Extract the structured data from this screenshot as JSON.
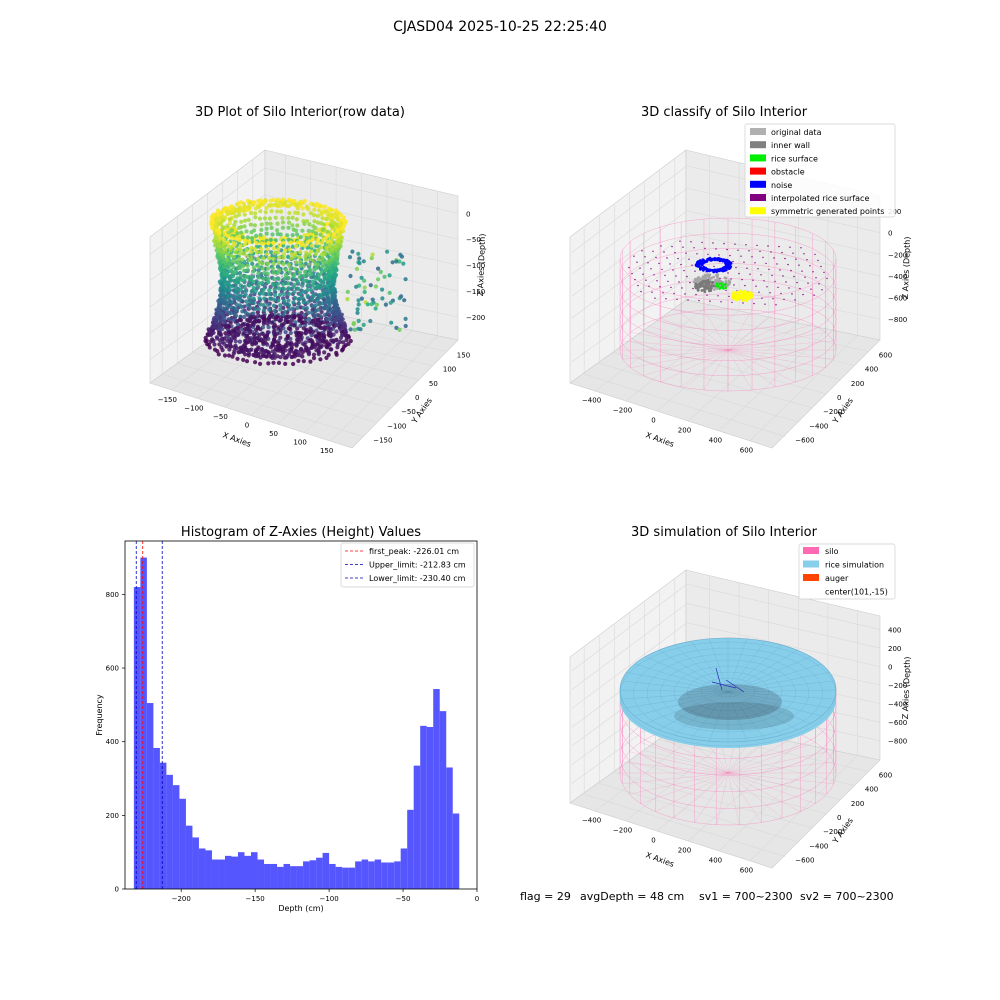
{
  "figure_title": "CJASD04 2025-10-25 22:25:40",
  "footer": {
    "flag": "flag = 29",
    "avg_depth": "avgDepth = 48 cm",
    "sv1": "sv1 = 700~2300",
    "sv2": "sv2 = 700~2300"
  },
  "colors": {
    "pane": "#f2f2f2",
    "pane_edge": "#cccccc",
    "silo": "#ff69b4",
    "rice_sim": "#87ceeb",
    "auger": "#ff4500",
    "hist_bar": "#4d4dff"
  },
  "chart_data": [
    {
      "type": "scatter",
      "subtype": "3d",
      "title": "3D Plot of Silo Interior(row data)",
      "xlabel": "X Axies",
      "ylabel": "Y Axies",
      "zlabel": "Z Axies (Depth)",
      "x_ticks": [
        "−150",
        "−100",
        "−50",
        "0",
        "50",
        "100",
        "150"
      ],
      "y_ticks": [
        "−150",
        "−100",
        "−50",
        "0",
        "50",
        "100",
        "150"
      ],
      "z_ticks": [
        "0",
        "−50",
        "−100",
        "−150",
        "−200"
      ],
      "xlim": [
        -160,
        160
      ],
      "ylim": [
        -160,
        160
      ],
      "zlim": [
        -240,
        0
      ],
      "colormap": "viridis"
    },
    {
      "type": "scatter",
      "subtype": "3d",
      "title": "3D classify of Silo Interior",
      "xlabel": "X Axies",
      "ylabel": "Y Axies",
      "zlabel": "Z Axies (Depth)",
      "x_ticks": [
        "−400",
        "−200",
        "0",
        "200",
        "400",
        "600"
      ],
      "y_ticks": [
        "−600",
        "−400",
        "−200",
        "0",
        "200",
        "400",
        "600"
      ],
      "z_ticks": [
        "200",
        "0",
        "−200",
        "−400",
        "−600",
        "−800"
      ],
      "legend_position": "upper-right",
      "legend": [
        {
          "label": "original data",
          "color": "#b0b0b0"
        },
        {
          "label": "inner wall",
          "color": "#808080"
        },
        {
          "label": "rice surface",
          "color": "#00ee00"
        },
        {
          "label": "obstacle",
          "color": "#ff0000"
        },
        {
          "label": "noise",
          "color": "#0000ff"
        },
        {
          "label": "interpolated rice surface",
          "color": "#800080"
        },
        {
          "label": "symmetric generated points",
          "color": "#ffff00"
        }
      ]
    },
    {
      "type": "bar",
      "subtype": "histogram",
      "title": "Histogram of Z-Axies (Height) Values",
      "xlabel": "Depth (cm)",
      "ylabel": "Frequency",
      "xlim": [
        -238,
        0
      ],
      "ylim": [
        0,
        945
      ],
      "x_ticks": [
        -200,
        -150,
        -100,
        -50,
        0
      ],
      "y_ticks": [
        0,
        200,
        400,
        600,
        800
      ],
      "bin_start": -232,
      "bin_width": 4.4,
      "values": [
        820,
        900,
        505,
        383,
        343,
        310,
        282,
        245,
        172,
        140,
        110,
        105,
        80,
        80,
        90,
        88,
        100,
        90,
        100,
        80,
        68,
        68,
        60,
        68,
        62,
        62,
        75,
        78,
        85,
        98,
        68,
        60,
        58,
        58,
        75,
        80,
        75,
        80,
        72,
        72,
        75,
        110,
        215,
        335,
        443,
        440,
        543,
        483,
        330,
        205
      ],
      "legend_position": "upper-right",
      "lines": [
        {
          "label": "first_peak: -226.01 cm",
          "value": -226.01,
          "color": "#ff0000"
        },
        {
          "label": "Upper_limit: -212.83 cm",
          "value": -212.83,
          "color": "#0000bb"
        },
        {
          "label": "Lower_limit: -230.40 cm",
          "value": -230.4,
          "color": "#0000bb"
        }
      ]
    },
    {
      "type": "area",
      "subtype": "3d-surface",
      "title": "3D simulation of Silo Interior",
      "xlabel": "X Axies",
      "ylabel": "Y Axies",
      "zlabel": "Z Axies (Depth)",
      "x_ticks": [
        "−400",
        "−200",
        "0",
        "200",
        "400",
        "600"
      ],
      "y_ticks": [
        "−600",
        "−400",
        "−200",
        "0",
        "200",
        "400",
        "600"
      ],
      "z_ticks": [
        "400",
        "200",
        "0",
        "−200",
        "−400",
        "−600",
        "−800"
      ],
      "legend_position": "upper-right",
      "legend": [
        {
          "label": "silo",
          "color": "#ff69b4",
          "marker": "patch"
        },
        {
          "label": "rice simulation",
          "color": "#87ceeb",
          "marker": "patch"
        },
        {
          "label": "auger",
          "color": "#ff4500",
          "marker": "patch"
        },
        {
          "label": "center(101,-15)",
          "color": "",
          "marker": "none"
        }
      ]
    }
  ]
}
